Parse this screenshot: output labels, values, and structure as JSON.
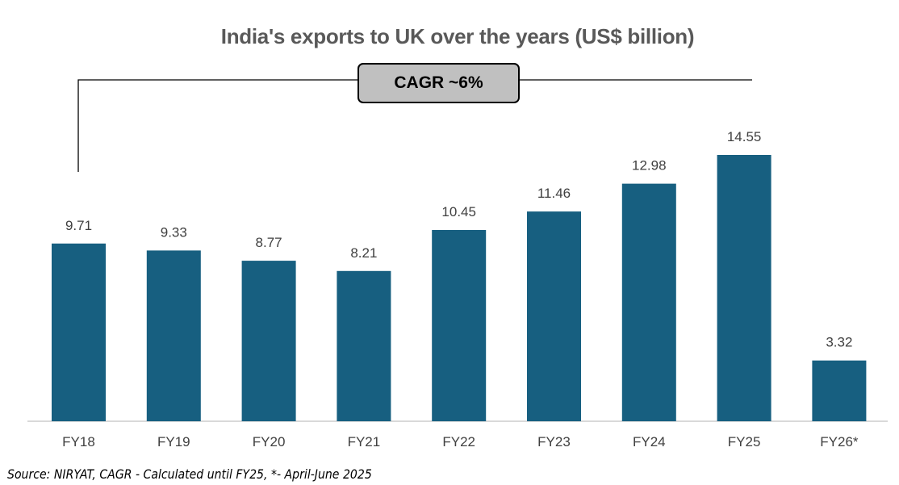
{
  "chart_data": {
    "type": "bar",
    "title": "India's exports to UK over the years (US$ billion)",
    "categories": [
      "FY18",
      "FY19",
      "FY20",
      "FY21",
      "FY22",
      "FY23",
      "FY24",
      "FY25",
      "FY26*"
    ],
    "values": [
      9.71,
      9.33,
      8.77,
      8.21,
      10.45,
      11.46,
      12.98,
      14.55,
      3.32
    ],
    "data_labels": [
      "9.71",
      "9.33",
      "8.77",
      "8.21",
      "10.45",
      "11.46",
      "12.98",
      "14.55",
      "3.32"
    ],
    "xlabel": "",
    "ylabel": "",
    "ylim": [
      0,
      15
    ],
    "grid": false,
    "bar_color": "#175f80",
    "annotation": "CAGR ~6%",
    "footnote": "Source: NIRYAT, CAGR - Calculated until FY25, *- April-June 2025"
  }
}
